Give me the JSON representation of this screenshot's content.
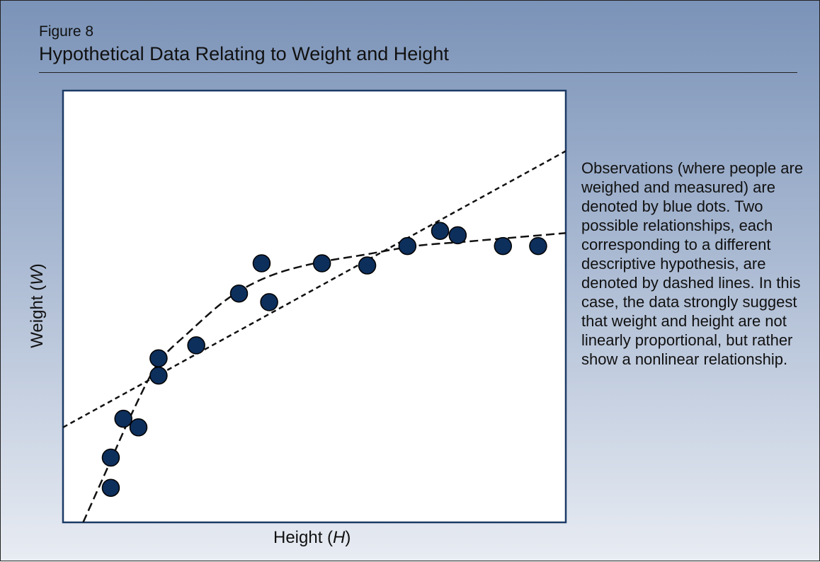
{
  "figure": {
    "number_label": "Figure 8",
    "title": "Hypothetical Data Relating to Weight and Height",
    "annotation": "Observations (where people are weighed and measured) are denoted by blue dots. Two possible relationships, each corresponding to a different descriptive hypothesis, are denoted by dashed lines. In this case, the data strongly suggest that weight and height are not linearly proportional, but rather show a nonlinear relationship."
  },
  "chart_data": {
    "type": "scatter",
    "title": "Hypothetical Data Relating to Weight and Height",
    "xlabel_prefix": "Height (",
    "xlabel_var": "H",
    "xlabel_suffix": ")",
    "ylabel_prefix": "Weight (",
    "ylabel_var": "W",
    "ylabel_suffix": ")",
    "xlim": [
      0,
      100
    ],
    "ylim": [
      0,
      100
    ],
    "grid": false,
    "ticks": false,
    "point_color": "#0d2f5c",
    "frame_color": "#1b3a66",
    "points": [
      {
        "x": 9.5,
        "y": 8
      },
      {
        "x": 9.5,
        "y": 15
      },
      {
        "x": 12,
        "y": 24
      },
      {
        "x": 15,
        "y": 22
      },
      {
        "x": 19,
        "y": 34
      },
      {
        "x": 19,
        "y": 38
      },
      {
        "x": 26.5,
        "y": 41
      },
      {
        "x": 35,
        "y": 53
      },
      {
        "x": 39.5,
        "y": 60
      },
      {
        "x": 41,
        "y": 51
      },
      {
        "x": 51.5,
        "y": 60
      },
      {
        "x": 60.5,
        "y": 59.5
      },
      {
        "x": 68.5,
        "y": 64
      },
      {
        "x": 75,
        "y": 67.5
      },
      {
        "x": 78.5,
        "y": 66.5
      },
      {
        "x": 87.5,
        "y": 64
      },
      {
        "x": 94.5,
        "y": 64
      }
    ],
    "fits": [
      {
        "style": "dashed",
        "kind": "linear",
        "points": [
          [
            0,
            22
          ],
          [
            100,
            86
          ]
        ]
      },
      {
        "style": "dashed",
        "kind": "nonlinear",
        "points": [
          [
            4,
            0
          ],
          [
            9,
            13
          ],
          [
            14,
            26
          ],
          [
            19,
            37
          ],
          [
            25,
            44
          ],
          [
            33,
            52
          ],
          [
            41,
            57
          ],
          [
            50,
            60
          ],
          [
            60,
            62
          ],
          [
            70,
            64
          ],
          [
            80,
            65
          ],
          [
            90,
            66
          ],
          [
            100,
            67
          ]
        ]
      }
    ]
  }
}
